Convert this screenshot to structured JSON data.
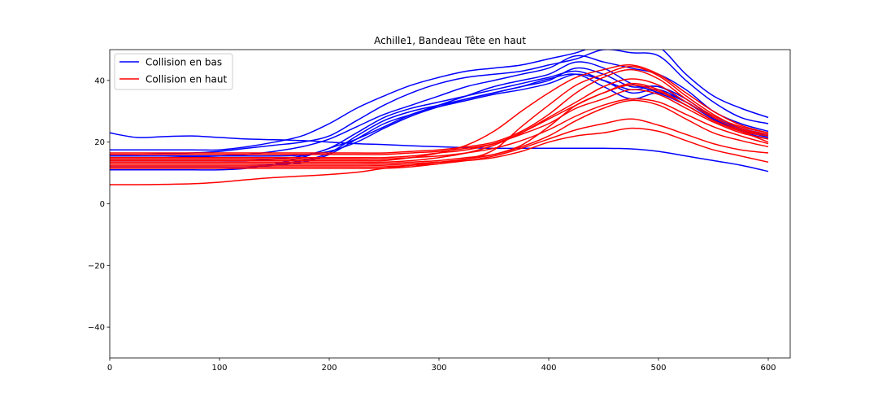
{
  "chart_data": {
    "type": "line",
    "title": "Achille1, Bandeau Tête en haut",
    "xlabel": "",
    "ylabel": "",
    "xlim": [
      0,
      620
    ],
    "ylim": [
      -50,
      50
    ],
    "x_ticks": [
      0,
      100,
      200,
      300,
      400,
      500,
      600
    ],
    "x_tick_labels": [
      "0",
      "100",
      "200",
      "300",
      "400",
      "500",
      "600"
    ],
    "y_ticks": [
      -40,
      -20,
      0,
      20,
      40
    ],
    "y_tick_labels": [
      "−40",
      "−20",
      "0",
      "20",
      "40"
    ],
    "grid": false,
    "legend": {
      "placement": "top-left",
      "entries": [
        {
          "label": "Collision en bas",
          "color": "#0000ff"
        },
        {
          "label": "Collision en haut",
          "color": "#ff0000"
        }
      ]
    },
    "x": [
      0,
      25,
      50,
      75,
      100,
      125,
      150,
      175,
      200,
      225,
      250,
      275,
      300,
      325,
      350,
      375,
      400,
      425,
      450,
      475,
      500,
      525,
      550,
      575,
      600
    ],
    "series": [
      {
        "group": "Collision en bas",
        "color": "#0000ff",
        "values": [
          23,
          21.5,
          21.8,
          22,
          21.5,
          21,
          20.8,
          20.5,
          20,
          19.5,
          19.2,
          18.8,
          18.5,
          18.2,
          18,
          18,
          18,
          18,
          18,
          17.8,
          17,
          15.5,
          14,
          12.5,
          10.5
        ]
      },
      {
        "group": "Collision en bas",
        "color": "#0000ff",
        "values": [
          17.5,
          17.5,
          17.5,
          17.5,
          17.5,
          18.5,
          20,
          22,
          26,
          31,
          35,
          38.5,
          41,
          43,
          44,
          45,
          47,
          49,
          52,
          53,
          51,
          42,
          35,
          31,
          28
        ]
      },
      {
        "group": "Collision en bas",
        "color": "#0000ff",
        "values": [
          16,
          16,
          16.2,
          16.5,
          17,
          18,
          19,
          20,
          22,
          27,
          32,
          36,
          39,
          41,
          42,
          43,
          45,
          47,
          50,
          49,
          48,
          40,
          33,
          28,
          26
        ]
      },
      {
        "group": "Collision en bas",
        "color": "#0000ff",
        "values": [
          15,
          15,
          15,
          15.2,
          15.5,
          16,
          17,
          18.5,
          21,
          25,
          29,
          32,
          35,
          38,
          40,
          42,
          44,
          48,
          46,
          44,
          42,
          37,
          30,
          26,
          23.5
        ]
      },
      {
        "group": "Collision en bas",
        "color": "#0000ff",
        "values": [
          14,
          14,
          14,
          14,
          14,
          14,
          14.5,
          15.5,
          18,
          23,
          28,
          31,
          33,
          35,
          37,
          39,
          41,
          43,
          40,
          36,
          37,
          33,
          28,
          24.5,
          22.5
        ]
      },
      {
        "group": "Collision en bas",
        "color": "#0000ff",
        "values": [
          13,
          13,
          13,
          13,
          13,
          13,
          13,
          14,
          16.5,
          22,
          27,
          30,
          32,
          34,
          36,
          38,
          40,
          44,
          42,
          38,
          38,
          34,
          28,
          24,
          22
        ]
      },
      {
        "group": "Collision en bas",
        "color": "#0000ff",
        "values": [
          12,
          12,
          12,
          12,
          12,
          12,
          12.5,
          13.5,
          16,
          21,
          26,
          29,
          31.5,
          33.5,
          35.5,
          37,
          39,
          42,
          40,
          37,
          38,
          33,
          27.5,
          24,
          21.5
        ]
      },
      {
        "group": "Collision en bas",
        "color": "#0000ff",
        "values": [
          11,
          11,
          11,
          11,
          11,
          11.5,
          13,
          15,
          18,
          21,
          25,
          29,
          32,
          35,
          38,
          40,
          42,
          46,
          44,
          39,
          36,
          32,
          27,
          23.5,
          21
        ]
      },
      {
        "group": "Collision en bas",
        "color": "#0000ff",
        "values": [
          15.5,
          15.5,
          15.5,
          15.5,
          15.5,
          15.5,
          15.5,
          15.8,
          17,
          20,
          24.5,
          28.5,
          31.5,
          34,
          36,
          38,
          40.5,
          42,
          38,
          34,
          36,
          33,
          27.5,
          24,
          22.5
        ]
      },
      {
        "group": "Collision en haut",
        "color": "#ff0000",
        "values": [
          6.2,
          6.2,
          6.3,
          6.5,
          7,
          7.8,
          8.5,
          9,
          9.5,
          10.2,
          11.5,
          12.5,
          13.5,
          14.5,
          16,
          19,
          25,
          32,
          36,
          39,
          37,
          32,
          27,
          23.5,
          20
        ]
      },
      {
        "group": "Collision en haut",
        "color": "#ff0000",
        "values": [
          12.5,
          12.5,
          12.5,
          12.5,
          12.5,
          12.5,
          12.5,
          12.5,
          12.5,
          12.5,
          12.5,
          13,
          13.5,
          14,
          15,
          17,
          20,
          22,
          23,
          24.5,
          23.5,
          20.5,
          17.5,
          15.5,
          13.5
        ]
      },
      {
        "group": "Collision en haut",
        "color": "#ff0000",
        "values": [
          11.5,
          11.5,
          11.5,
          11.5,
          11.5,
          11.5,
          11.5,
          11.5,
          11.5,
          11.5,
          11.5,
          12,
          13,
          14,
          15.5,
          18,
          21,
          24,
          26,
          27.5,
          25.5,
          22.5,
          19.5,
          17.5,
          16.5
        ]
      },
      {
        "group": "Collision en haut",
        "color": "#ff0000",
        "values": [
          13,
          13,
          13,
          13,
          13,
          13,
          13,
          13,
          13,
          13,
          13,
          13.5,
          14,
          15,
          16,
          18.5,
          22,
          27,
          31,
          33.5,
          32,
          27.5,
          23,
          20.5,
          18.5
        ]
      },
      {
        "group": "Collision en haut",
        "color": "#ff0000",
        "values": [
          14.5,
          14.5,
          14.5,
          14.5,
          14.5,
          14.5,
          14.5,
          14.5,
          14.5,
          14.5,
          14.5,
          15,
          15.5,
          16.5,
          18,
          20.5,
          24,
          28.5,
          32,
          34,
          33,
          29,
          25,
          22,
          19.5
        ]
      },
      {
        "group": "Collision en haut",
        "color": "#ff0000",
        "values": [
          16,
          16,
          16,
          16,
          16,
          16,
          16,
          16,
          16,
          16,
          16,
          16.5,
          17,
          18,
          19.5,
          22.5,
          26,
          31,
          34,
          37,
          35.5,
          31,
          26.5,
          23,
          21
        ]
      },
      {
        "group": "Collision en haut",
        "color": "#ff0000",
        "values": [
          15,
          15,
          15,
          15,
          15,
          15,
          15,
          15,
          15,
          15,
          15,
          15.5,
          16.5,
          17.5,
          19.5,
          23,
          27.5,
          32,
          36,
          38.5,
          36.5,
          32,
          27,
          23.5,
          22
        ]
      },
      {
        "group": "Collision en haut",
        "color": "#ff0000",
        "values": [
          13.5,
          13.5,
          13.5,
          13.5,
          13.5,
          13.5,
          13.5,
          13.5,
          13.5,
          13.5,
          13.5,
          14,
          15,
          16.5,
          19,
          23,
          28,
          33,
          38,
          40.5,
          38.5,
          33,
          28,
          24,
          22.5
        ]
      },
      {
        "group": "Collision en haut",
        "color": "#ff0000",
        "values": [
          16.5,
          16.5,
          16.5,
          16.5,
          16.5,
          16.5,
          16.5,
          16.5,
          16.5,
          16.5,
          16.5,
          17,
          17.5,
          18.5,
          20,
          23.5,
          29,
          36,
          41,
          43.5,
          40.5,
          34,
          28.5,
          25,
          23
        ]
      },
      {
        "group": "Collision en haut",
        "color": "#ff0000",
        "values": [
          12,
          12,
          12,
          12,
          12,
          12,
          12,
          12,
          12,
          12,
          12,
          12.5,
          13,
          14.5,
          17.5,
          25,
          32,
          38.5,
          42,
          44.5,
          41.5,
          35,
          29,
          24.5,
          22.5
        ]
      },
      {
        "group": "Collision en haut",
        "color": "#ff0000",
        "values": [
          14,
          14,
          14,
          14,
          14,
          14,
          14,
          14,
          14,
          14,
          14,
          15,
          16.5,
          19,
          23.5,
          30,
          36,
          41,
          43.5,
          45,
          42,
          36,
          30,
          25.5,
          23
        ]
      }
    ]
  }
}
